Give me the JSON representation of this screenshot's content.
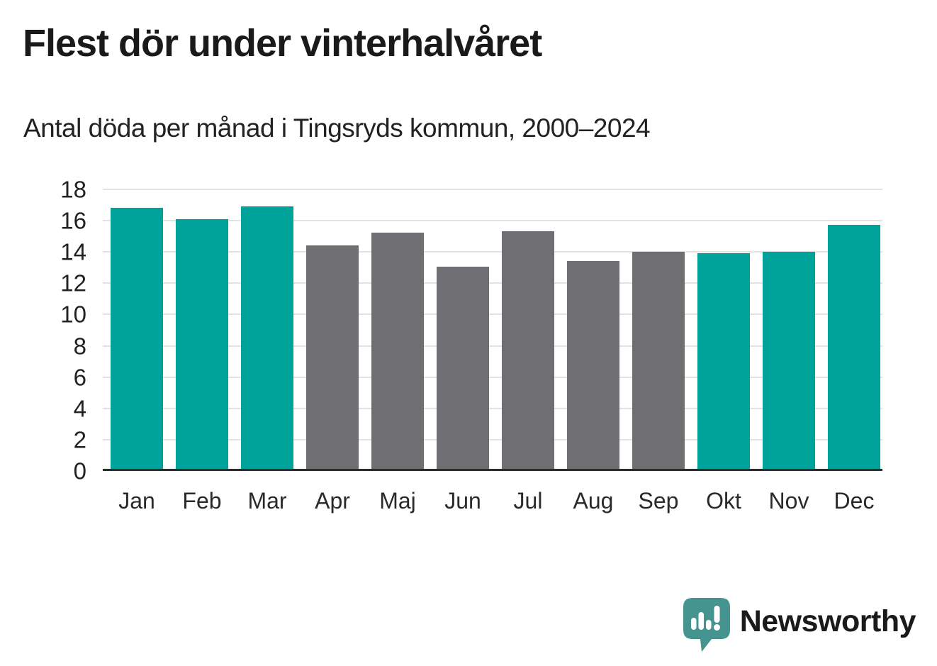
{
  "header": {
    "title": "Flest dör under vinterhalvåret",
    "subtitle": "Antal döda per månad i Tingsryds kommun, 2000–2024"
  },
  "chart_data": {
    "type": "bar",
    "categories": [
      "Jan",
      "Feb",
      "Mar",
      "Apr",
      "Maj",
      "Jun",
      "Jul",
      "Aug",
      "Sep",
      "Okt",
      "Nov",
      "Dec"
    ],
    "values": [
      16.8,
      16.1,
      16.9,
      14.4,
      15.2,
      13.0,
      15.3,
      13.4,
      14.0,
      13.9,
      14.0,
      15.7
    ],
    "bar_colors": [
      "#00a399",
      "#00a399",
      "#00a399",
      "#6e6e73",
      "#6e6e73",
      "#6e6e73",
      "#6e6e73",
      "#6e6e73",
      "#6e6e73",
      "#00a399",
      "#00a399",
      "#00a399"
    ],
    "title": "Flest dör under vinterhalvåret",
    "subtitle": "Antal döda per månad i Tingsryds kommun, 2000–2024",
    "xlabel": "",
    "ylabel": "",
    "ylim": [
      0,
      18
    ],
    "yticks": [
      0,
      2,
      4,
      6,
      8,
      10,
      12,
      14,
      16,
      18
    ],
    "grid": true,
    "legend": false,
    "highlight_color": "#00a399",
    "base_color": "#6e6e73",
    "gridline_color": "#e2e2e2",
    "axis_color": "#2b2b2b"
  },
  "footer": {
    "brand": "Newsworthy",
    "brand_color": "#3e948e",
    "logo_color": "#45948f"
  }
}
